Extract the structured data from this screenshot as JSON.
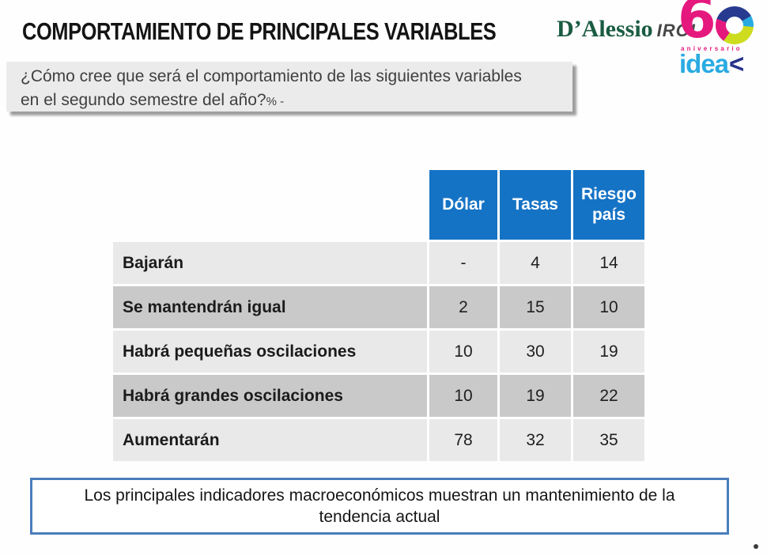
{
  "header": {
    "title": "COMPORTAMIENTO DE PRINCIPALES VARIABLES",
    "brand": {
      "dalessio": "D’Alessio",
      "irol": "IROL",
      "six": "6",
      "aniversario": "aniversario",
      "idea": "idea",
      "chevron": "<"
    }
  },
  "question": {
    "text": "¿Cómo cree que será el comportamiento de las siguientes variables en el segundo semestre del año?",
    "suffix": "% -"
  },
  "table": {
    "columns": [
      "Dólar",
      "Tasas",
      "Riesgo país"
    ],
    "rows": [
      {
        "label": "Bajarán",
        "values": [
          "-",
          "4",
          "14"
        ]
      },
      {
        "label": "Se mantendrán igual",
        "values": [
          "2",
          "15",
          "10"
        ]
      },
      {
        "label": "Habrá pequeñas oscilaciones",
        "values": [
          "10",
          "30",
          "19"
        ]
      },
      {
        "label": "Habrá grandes oscilaciones",
        "values": [
          "10",
          "19",
          "22"
        ]
      },
      {
        "label": "Aumentarán",
        "values": [
          "78",
          "32",
          "35"
        ]
      }
    ]
  },
  "note": "Los principales indicadores macroeconómicos muestran un mantenimiento de la tendencia actual",
  "chart_data": {
    "type": "table",
    "title": "COMPORTAMIENTO DE PRINCIPALES VARIABLES",
    "subtitle": "¿Cómo cree que será el comportamiento de las siguientes variables en el segundo semestre del año? (%)",
    "categories": [
      "Bajarán",
      "Se mantendrán igual",
      "Habrá pequeñas oscilaciones",
      "Habrá grandes oscilaciones",
      "Aumentarán"
    ],
    "series": [
      {
        "name": "Dólar",
        "values": [
          null,
          2,
          10,
          10,
          78
        ]
      },
      {
        "name": "Tasas",
        "values": [
          4,
          15,
          30,
          19,
          32
        ]
      },
      {
        "name": "Riesgo país",
        "values": [
          14,
          10,
          19,
          22,
          35
        ]
      }
    ]
  },
  "colors": {
    "header_blue": "#1573c5",
    "row_light": "#e9e9e9",
    "row_dark": "#c9c9c9",
    "question_bg": "#ebebeb",
    "note_border": "#4a7ebb",
    "brand_green": "#1a5c42",
    "brand_pink": "#e5197d",
    "brand_cyan": "#29abe2",
    "brand_navy": "#283a90",
    "brand_yellowgreen": "#cddc1e"
  }
}
